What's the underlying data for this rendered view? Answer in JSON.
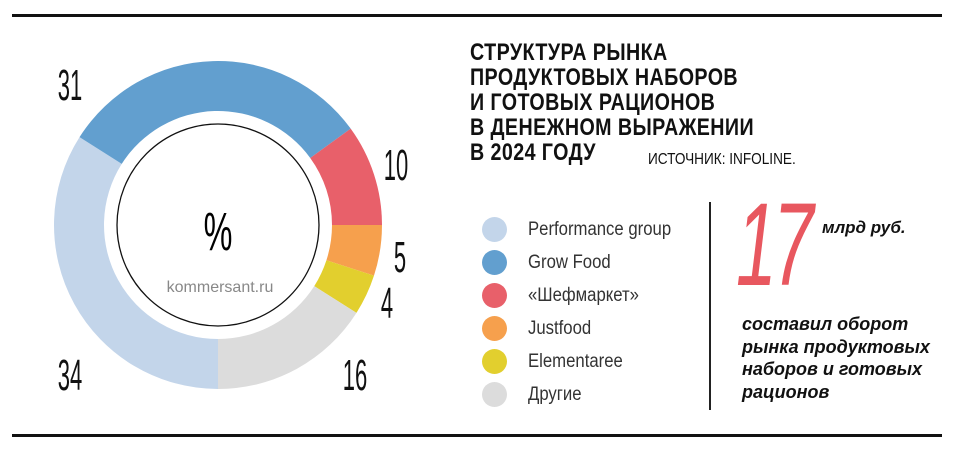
{
  "chart_data": {
    "type": "pie",
    "title": [
      "СТРУКТУРА РЫНКА",
      "ПРОДУКТОВЫХ НАБОРОВ",
      "И ГОТОВЫХ РАЦИОНОВ",
      "В ДЕНЕЖНОМ ВЫРАЖЕНИИ",
      "В 2024 ГОДУ"
    ],
    "source": "ИСТОЧНИК: INFOLINE.",
    "unit": "%",
    "watermark": "kommersant.ru",
    "donut": true,
    "legend_position": "right",
    "slices": [
      {
        "label": "Performance group",
        "value": 34,
        "color": "#c3d5ea"
      },
      {
        "label": "Grow Food",
        "value": 31,
        "color": "#629fcf"
      },
      {
        "label": "«Шефмаркет»",
        "value": 10,
        "color": "#e8606a"
      },
      {
        "label": "Justfood",
        "value": 5,
        "color": "#f6a04d"
      },
      {
        "label": "Elementaree",
        "value": 4,
        "color": "#e2cf2e"
      },
      {
        "label": "Другие",
        "value": 16,
        "color": "#dcdcdc"
      }
    ]
  },
  "highlight": {
    "number": "17",
    "unit": "млрд руб.",
    "description": [
      "составил оборот",
      "рынка продуктовых",
      "наборов и готовых",
      "рационов"
    ],
    "color": "#e8575f"
  }
}
